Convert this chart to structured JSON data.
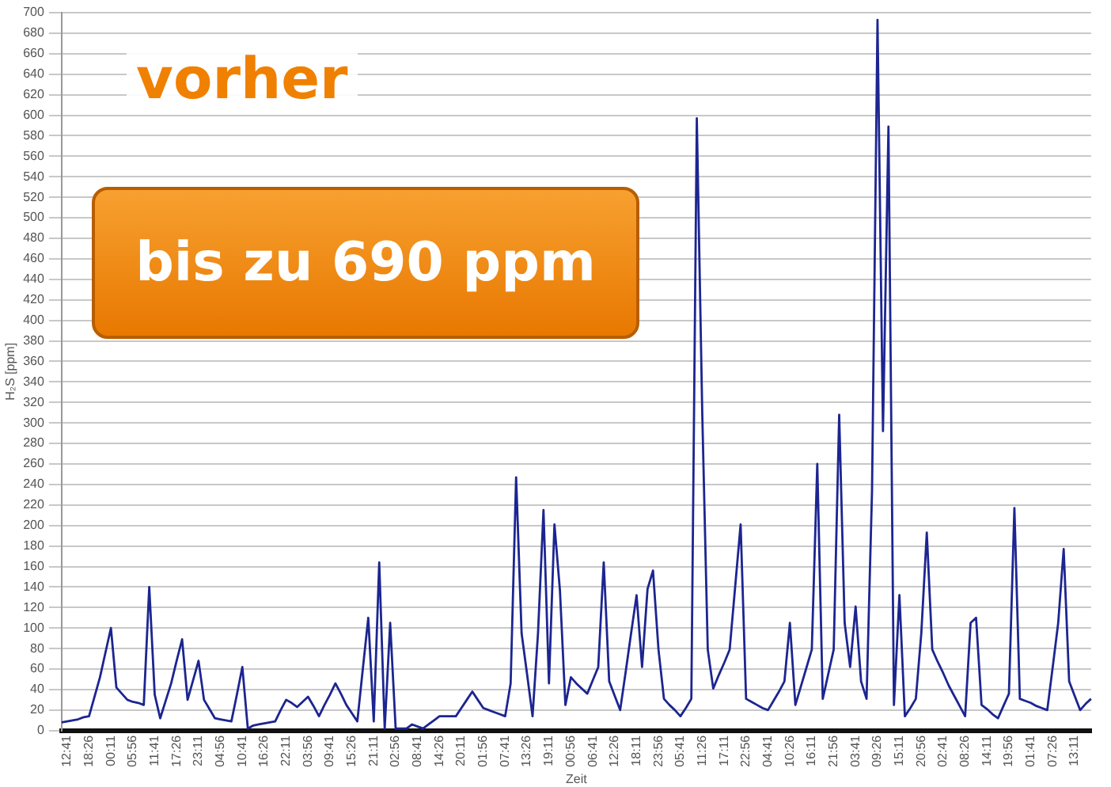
{
  "chart_data": {
    "type": "line",
    "xlabel": "Zeit",
    "ylabel": "H₂S [ppm]",
    "annotations": [
      "vorher",
      "bis zu 690 ppm"
    ],
    "grid": "y",
    "marker": "none",
    "ylim": [
      0,
      700
    ],
    "yticks": [
      0,
      20,
      40,
      60,
      80,
      100,
      120,
      140,
      160,
      180,
      200,
      220,
      240,
      260,
      280,
      300,
      320,
      340,
      360,
      380,
      400,
      420,
      440,
      460,
      480,
      500,
      520,
      540,
      560,
      580,
      600,
      620,
      640,
      660,
      680,
      700
    ],
    "categories": [
      null,
      "12:41",
      null,
      null,
      null,
      "18:26",
      null,
      null,
      null,
      "00:11",
      null,
      null,
      null,
      "05:56",
      null,
      null,
      null,
      "11:41",
      null,
      null,
      null,
      "17:26",
      null,
      null,
      null,
      "23:11",
      null,
      null,
      null,
      "04:56",
      null,
      null,
      null,
      "10:41",
      null,
      null,
      null,
      "16:26",
      null,
      null,
      null,
      "22:11",
      null,
      null,
      null,
      "03:56",
      null,
      null,
      null,
      "09:41",
      null,
      null,
      null,
      "15:26",
      null,
      null,
      null,
      "21:11",
      null,
      null,
      null,
      "02:56",
      null,
      null,
      null,
      "08:41",
      null,
      null,
      null,
      "14:26",
      null,
      null,
      null,
      "20:11",
      null,
      null,
      null,
      "01:56",
      null,
      null,
      null,
      "07:41",
      null,
      null,
      null,
      "13:26",
      null,
      null,
      null,
      "19:11",
      null,
      null,
      null,
      "00:56",
      null,
      null,
      null,
      "06:41",
      null,
      null,
      null,
      "12:26",
      null,
      null,
      null,
      "18:11",
      null,
      null,
      null,
      "23:56",
      null,
      null,
      null,
      "05:41",
      null,
      null,
      null,
      "11:26",
      null,
      null,
      null,
      "17:11",
      null,
      null,
      null,
      "22:56",
      null,
      null,
      null,
      "04:41",
      null,
      null,
      null,
      "10:26",
      null,
      null,
      null,
      "16:11",
      null,
      null,
      null,
      "21:56",
      null,
      null,
      null,
      "03:41",
      null,
      null,
      null,
      "09:26",
      null,
      null,
      null,
      "15:11",
      null,
      null,
      null,
      "20:56",
      null,
      null,
      null,
      "02:41",
      null,
      null,
      null,
      "08:26",
      null,
      null,
      null,
      "14:11",
      null,
      null,
      null,
      "19:56",
      null,
      null,
      null,
      "01:41",
      null,
      null,
      null,
      "07:26",
      null,
      null,
      null,
      "13:11",
      null,
      null,
      null
    ],
    "series": [
      {
        "color": "#1c2590",
        "values": [
          8,
          9,
          10,
          11,
          13,
          14,
          33,
          52,
          76,
          100,
          42,
          36,
          30,
          28,
          27,
          25,
          140,
          35,
          12,
          29,
          46,
          68,
          89,
          30,
          49,
          68,
          30,
          21,
          12,
          11,
          10,
          9,
          35,
          62,
          2,
          5,
          6,
          7,
          8,
          9,
          20,
          30,
          27,
          23,
          28,
          33,
          24,
          14,
          25,
          35,
          46,
          36,
          25,
          17,
          9,
          60,
          110,
          9,
          164,
          2,
          105,
          2,
          2,
          2,
          6,
          4,
          2,
          6,
          10,
          14,
          14,
          14,
          14,
          22,
          30,
          38,
          30,
          22,
          20,
          18,
          16,
          14,
          46,
          247,
          95,
          55,
          14,
          95,
          215,
          46,
          201,
          137,
          25,
          52,
          46,
          41,
          36,
          49,
          62,
          164,
          48,
          34,
          20,
          57,
          95,
          132,
          62,
          138,
          156,
          79,
          31,
          25,
          20,
          14,
          22,
          31,
          597,
          308,
          79,
          41,
          54,
          66,
          79,
          140,
          201,
          31,
          28,
          25,
          22,
          20,
          29,
          38,
          48,
          105,
          25,
          43,
          61,
          79,
          260,
          31,
          55,
          79,
          308,
          105,
          62,
          121,
          48,
          31,
          234,
          693,
          292,
          589,
          25,
          132,
          14,
          22,
          31,
          95,
          193,
          79,
          67,
          56,
          44,
          34,
          24,
          14,
          105,
          110,
          25,
          21,
          16,
          12,
          24,
          36,
          217,
          31,
          29,
          27,
          24,
          22,
          20,
          62,
          105,
          177,
          48,
          34,
          20,
          26,
          31
        ]
      }
    ]
  }
}
